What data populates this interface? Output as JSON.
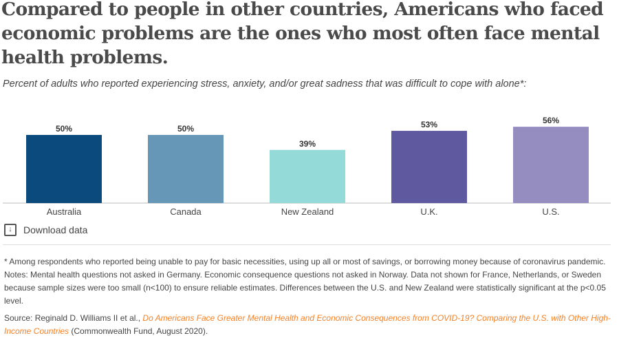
{
  "title": "Compared to people in other countries, Americans who faced economic problems are the ones who most often face mental health problems.",
  "subtitle": "Percent of adults who reported experiencing stress, anxiety, and/or great sadness that was difficult to cope with alone*:",
  "download": {
    "label": "Download data",
    "icon": "download-icon"
  },
  "notes": "* Among respondents who reported being unable to pay for basic necessities, using up all or most of savings, or borrowing money because of coronavirus pandemic. Notes: Mental health questions not asked in Germany. Economic consequence questions not asked in Norway. Data not shown for France, Netherlands, or Sweden because sample sizes were too small (n<100) to ensure reliable estimates. Differences between the U.S. and New Zealand were statistically significant at the p<0.05 level.",
  "source": {
    "prefix": "Source: Reginald D. Williams II et al., ",
    "link": "Do Americans Face Greater Mental Health and Economic Consequences from COVID-19? Comparing the U.S. with Other High-Income Countries",
    "suffix": " (Commonwealth Fund, August 2020)."
  },
  "chart_data": {
    "type": "bar",
    "categories": [
      "Australia",
      "Canada",
      "New Zealand",
      "U.K.",
      "U.S."
    ],
    "values": [
      50,
      50,
      39,
      53,
      56
    ],
    "data_labels": [
      "50%",
      "50%",
      "39%",
      "53%",
      "56%"
    ],
    "colors": [
      "#0b4a7d",
      "#6797b6",
      "#94dad8",
      "#5f5a9f",
      "#958dc0"
    ],
    "ylim": [
      0,
      60
    ],
    "grid": false
  }
}
